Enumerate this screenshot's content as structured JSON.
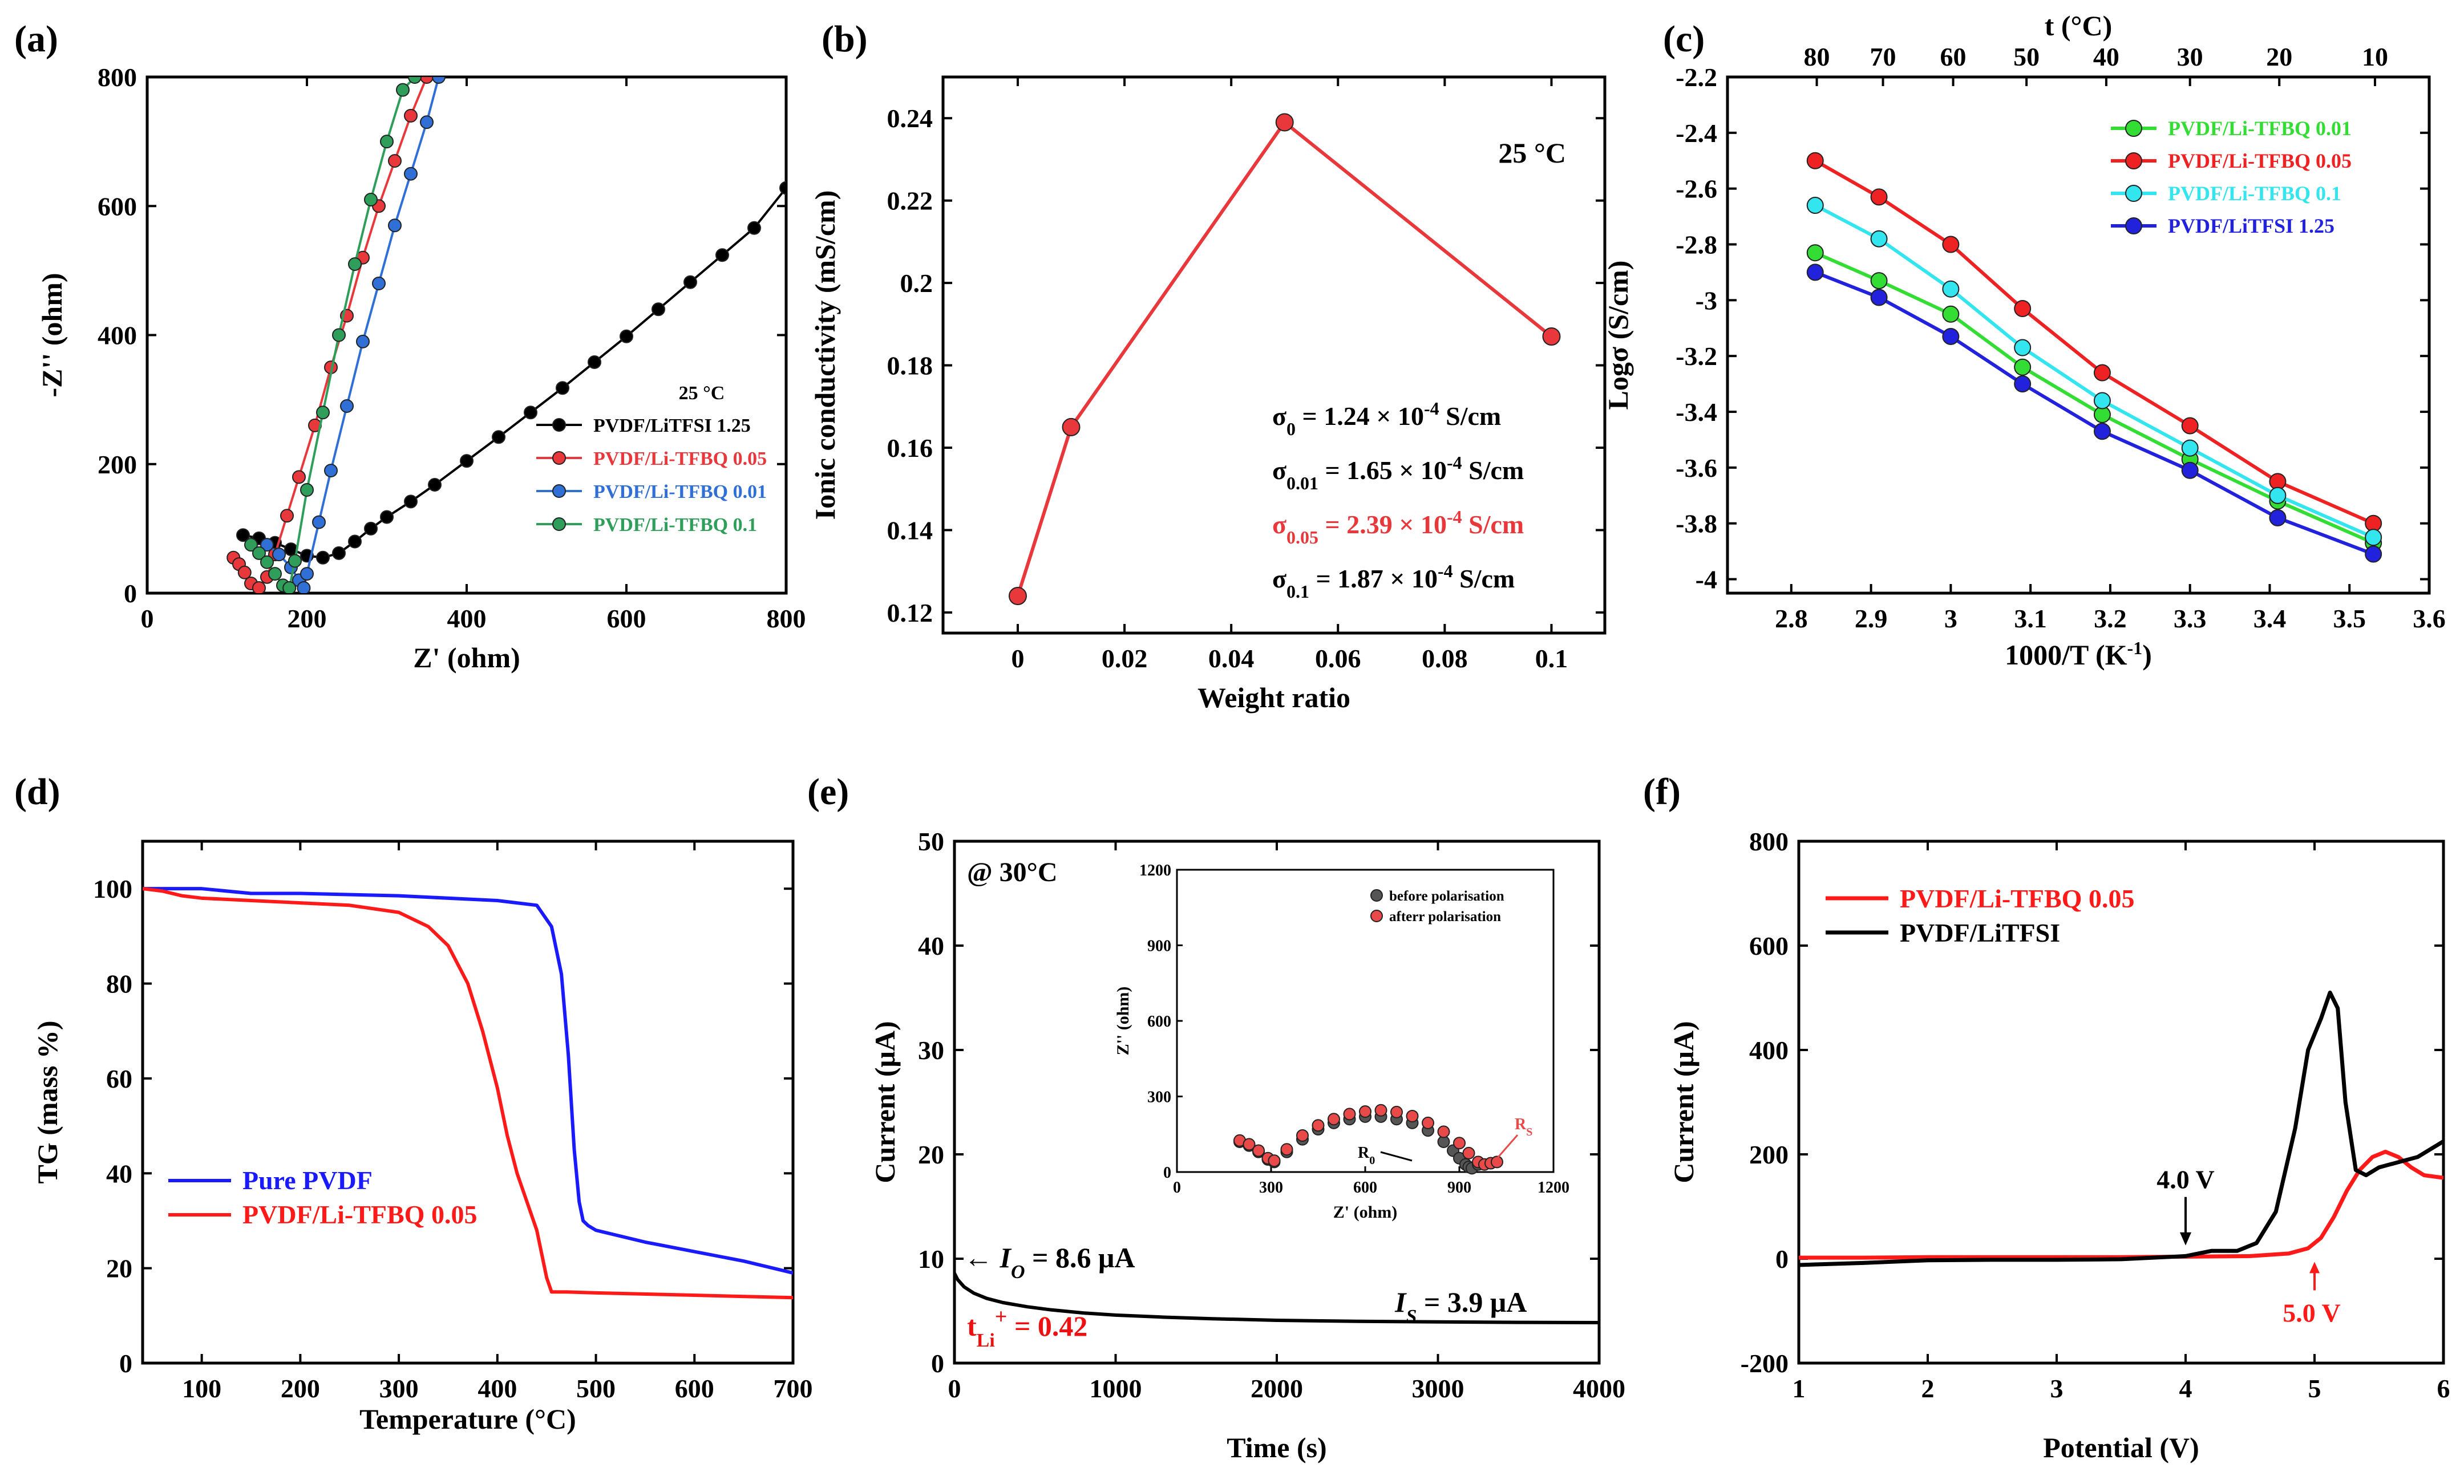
{
  "chart_data": [
    {
      "id": "a",
      "panel_label": "(a)",
      "type": "scatter",
      "xlabel": "Z' (ohm)",
      "ylabel": "-Z'' (ohm)",
      "xlim": [
        0,
        800
      ],
      "ylim": [
        0,
        800
      ],
      "xticks": [
        "0",
        "200",
        "400",
        "600",
        "800"
      ],
      "yticks": [
        "0",
        "200",
        "400",
        "600",
        "800"
      ],
      "legend_title": "25 °C",
      "series": [
        {
          "name": "PVDF/LiTFSI 1.25",
          "color": "#000000",
          "x": [
            120,
            140,
            160,
            180,
            200,
            220,
            240,
            260,
            280,
            300,
            330,
            360,
            400,
            440,
            480,
            520,
            560,
            600,
            640,
            680,
            720,
            760,
            800
          ],
          "y": [
            90,
            85,
            78,
            68,
            58,
            55,
            62,
            80,
            100,
            118,
            142,
            168,
            205,
            242,
            280,
            318,
            358,
            398,
            440,
            482,
            524,
            566,
            628
          ]
        },
        {
          "name": "PVDF/Li-TFBQ 0.05",
          "color": "#e8383c",
          "x": [
            108,
            115,
            122,
            130,
            140,
            150,
            160,
            175,
            190,
            210,
            230,
            250,
            270,
            290,
            310,
            330,
            350
          ],
          "y": [
            55,
            45,
            32,
            15,
            8,
            25,
            60,
            120,
            180,
            260,
            350,
            430,
            520,
            600,
            670,
            740,
            800
          ]
        },
        {
          "name": "PVDF/Li-TFBQ 0.01",
          "color": "#2f6fd6",
          "x": [
            150,
            165,
            180,
            190,
            196,
            200,
            215,
            230,
            250,
            270,
            290,
            310,
            330,
            350,
            365
          ],
          "y": [
            75,
            60,
            40,
            20,
            8,
            30,
            110,
            190,
            290,
            390,
            480,
            570,
            650,
            730,
            800
          ]
        },
        {
          "name": "PVDF/Li-TFBQ 0.1",
          "color": "#2e9e5a",
          "x": [
            130,
            140,
            150,
            160,
            170,
            178,
            185,
            200,
            220,
            240,
            260,
            280,
            300,
            320,
            335
          ],
          "y": [
            75,
            62,
            48,
            30,
            12,
            8,
            50,
            160,
            280,
            400,
            510,
            610,
            700,
            780,
            800
          ]
        }
      ]
    },
    {
      "id": "b",
      "panel_label": "(b)",
      "type": "line",
      "xlabel": "Weight ratio",
      "ylabel": "Ionic conductivity (mS/cm)",
      "xlim": [
        -0.014,
        0.11
      ],
      "ylim": [
        0.115,
        0.25
      ],
      "xticks": [
        "0",
        "0.02",
        "0.04",
        "0.06",
        "0.08",
        "0.1"
      ],
      "yticks": [
        "0.12",
        "0.14",
        "0.16",
        "0.18",
        "0.2",
        "0.22",
        "0.24"
      ],
      "temperature_label": "25 °C",
      "series": [
        {
          "name": "Ionic conductivity",
          "color": "#e8383c",
          "x": [
            0,
            0.01,
            0.05,
            0.1
          ],
          "y": [
            0.124,
            0.165,
            0.239,
            0.187
          ]
        }
      ],
      "annotations": [
        {
          "sym": "σ",
          "sub": "0",
          "text": " = 1.24 × 10",
          "exp": "-4",
          "unit": " S/cm",
          "color": "#000000"
        },
        {
          "sym": "σ",
          "sub": "0.01",
          "text": " = 1.65 × 10",
          "exp": "-4",
          "unit": " S/cm",
          "color": "#000000"
        },
        {
          "sym": "σ",
          "sub": "0.05",
          "text": " = 2.39 × 10",
          "exp": "-4",
          "unit": " S/cm",
          "color": "#e8383c"
        },
        {
          "sym": "σ",
          "sub": "0.1",
          "text": " = 1.87 × 10",
          "exp": "-4",
          "unit": " S/cm",
          "color": "#000000"
        }
      ]
    },
    {
      "id": "c",
      "panel_label": "(c)",
      "type": "line",
      "xlabel": "1000/T (K",
      "xlabel_sup": "-1",
      "xlabel_end": ")",
      "ylabel": "Logσ (S/cm)",
      "top_xlabel": "t (°C)",
      "xlim": [
        2.72,
        3.6
      ],
      "ylim": [
        -4.05,
        -2.2
      ],
      "xticks": [
        "2.8",
        "2.9",
        "3",
        "3.1",
        "3.2",
        "3.3",
        "3.4",
        "3.5",
        "3.6"
      ],
      "yticks": [
        "-2.2",
        "-2.4",
        "-2.6",
        "-2.8",
        "-3",
        "-3.2",
        "-3.4",
        "-3.6",
        "-3.8",
        "-4"
      ],
      "top_ticks": [
        {
          "label": "80",
          "x": 2.832
        },
        {
          "label": "70",
          "x": 2.915
        },
        {
          "label": "60",
          "x": 3.003
        },
        {
          "label": "50",
          "x": 3.095
        },
        {
          "label": "40",
          "x": 3.195
        },
        {
          "label": "30",
          "x": 3.3
        },
        {
          "label": "20",
          "x": 3.412
        },
        {
          "label": "10",
          "x": 3.532
        }
      ],
      "categories": [
        2.83,
        2.91,
        3.0,
        3.09,
        3.19,
        3.3,
        3.41,
        3.53
      ],
      "series": [
        {
          "name": "PVDF/Li-TFBQ 0.01",
          "color": "#33dd33",
          "values": [
            -2.83,
            -2.93,
            -3.05,
            -3.24,
            -3.41,
            -3.57,
            -3.72,
            -3.87
          ]
        },
        {
          "name": "PVDF/Li-TFBQ 0.05",
          "color": "#ee2222",
          "values": [
            -2.5,
            -2.63,
            -2.8,
            -3.03,
            -3.26,
            -3.45,
            -3.65,
            -3.8
          ]
        },
        {
          "name": "PVDF/Li-TFBQ 0.1",
          "color": "#33e5ee",
          "values": [
            -2.66,
            -2.78,
            -2.96,
            -3.17,
            -3.36,
            -3.53,
            -3.7,
            -3.85
          ]
        },
        {
          "name": "PVDF/LiTFSI 1.25",
          "color": "#2222dd",
          "values": [
            -2.9,
            -2.99,
            -3.13,
            -3.3,
            -3.47,
            -3.61,
            -3.78,
            -3.91
          ]
        }
      ]
    },
    {
      "id": "d",
      "panel_label": "(d)",
      "type": "line",
      "xlabel": "Temperature (°C)",
      "ylabel": "TG (mass %)",
      "xlim": [
        40,
        700
      ],
      "ylim": [
        0,
        110
      ],
      "xticks": [
        "100",
        "200",
        "300",
        "400",
        "500",
        "600",
        "700"
      ],
      "yticks": [
        "0",
        "20",
        "40",
        "60",
        "80",
        "100"
      ],
      "series": [
        {
          "name": "Pure PVDF",
          "color": "#1a1aff",
          "x": [
            40,
            100,
            150,
            200,
            300,
            400,
            440,
            455,
            465,
            472,
            478,
            483,
            487,
            492,
            500,
            550,
            600,
            650,
            700
          ],
          "y": [
            100,
            100,
            99,
            99,
            98.5,
            97.5,
            96.5,
            92,
            82,
            65,
            45,
            34,
            30,
            29,
            28,
            25.5,
            23.5,
            21.5,
            19
          ]
        },
        {
          "name": "PVDF/Li-TFBQ 0.05",
          "color": "#ff1a1a",
          "x": [
            40,
            60,
            80,
            100,
            150,
            200,
            250,
            300,
            330,
            350,
            370,
            385,
            400,
            410,
            420,
            430,
            440,
            450,
            455,
            470,
            500,
            600,
            700
          ],
          "y": [
            100,
            99.5,
            98.5,
            98,
            97.5,
            97,
            96.5,
            95,
            92,
            88,
            80,
            70,
            58,
            48,
            40,
            34,
            28,
            18,
            15,
            15,
            14.8,
            14.3,
            13.8
          ]
        }
      ]
    },
    {
      "id": "e",
      "panel_label": "(e)",
      "type": "line",
      "xlabel": "Time (s)",
      "ylabel": "Current (μA)",
      "xlim": [
        0,
        4000
      ],
      "ylim": [
        0,
        50
      ],
      "xticks": [
        "0",
        "1000",
        "2000",
        "3000",
        "4000"
      ],
      "yticks": [
        "0",
        "10",
        "20",
        "30",
        "40",
        "50"
      ],
      "condition_label": "@ 30°C",
      "io_label": "← I",
      "io_sub": "O",
      "io_value": " = 8.6 μA",
      "is_label": "I",
      "is_sub": "S",
      "is_value": " = 3.9 μA",
      "tli_label": "t",
      "tli_sub": "Li",
      "tli_sup": "+",
      "tli_value": " = 0.42",
      "series": [
        {
          "name": "Current",
          "color": "#000000",
          "x": [
            0,
            20,
            60,
            120,
            200,
            300,
            450,
            600,
            800,
            1000,
            1300,
            1600,
            2000,
            2500,
            3000,
            3500,
            4000
          ],
          "y": [
            8.6,
            8.0,
            7.3,
            6.7,
            6.2,
            5.8,
            5.4,
            5.1,
            4.8,
            4.6,
            4.4,
            4.25,
            4.1,
            4.0,
            3.95,
            3.9,
            3.88
          ]
        }
      ],
      "inset": {
        "xlabel": "Z' (ohm)",
        "ylabel": "Z'' (ohm)",
        "xlim": [
          0,
          1200
        ],
        "ylim": [
          0,
          1200
        ],
        "xticks": [
          "0",
          "300",
          "600",
          "900",
          "1200"
        ],
        "yticks": [
          "0",
          "300",
          "600",
          "900",
          "1200"
        ],
        "r0_label": "R",
        "r0_sub": "0",
        "rs_label": "R",
        "rs_sub": "S",
        "series": [
          {
            "name": "before polarisation",
            "color": "#555555",
            "x": [
              200,
              230,
              260,
              290,
              310,
              350,
              400,
              450,
              500,
              550,
              600,
              650,
              700,
              750,
              800,
              850,
              880,
              900,
              920,
              930,
              940,
              960
            ],
            "y": [
              120,
              105,
              80,
              50,
              40,
              80,
              130,
              170,
              195,
              210,
              220,
              220,
              210,
              195,
              165,
              120,
              85,
              55,
              30,
              20,
              15,
              30
            ]
          },
          {
            "name": "afterr polarisation",
            "color": "#e84a4a",
            "x": [
              200,
              230,
              260,
              290,
              310,
              350,
              400,
              450,
              500,
              550,
              600,
              650,
              700,
              750,
              800,
              850,
              900,
              930,
              960,
              980,
              1000,
              1020
            ],
            "y": [
              125,
              110,
              85,
              55,
              45,
              90,
              145,
              185,
              210,
              230,
              240,
              245,
              238,
              222,
              195,
              160,
              115,
              75,
              40,
              30,
              35,
              40
            ]
          }
        ]
      }
    },
    {
      "id": "f",
      "panel_label": "(f)",
      "type": "line",
      "xlabel": "Potential (V)",
      "ylabel": "Current (μA)",
      "xlim": [
        1,
        6
      ],
      "ylim": [
        -200,
        800
      ],
      "xticks": [
        "1",
        "2",
        "3",
        "4",
        "5",
        "6"
      ],
      "yticks": [
        "-200",
        "0",
        "200",
        "400",
        "600",
        "800"
      ],
      "marker_black": "4.0 V",
      "marker_red": "5.0 V",
      "series": [
        {
          "name": "PVDF/Li-TFBQ 0.05",
          "color": "#ff1a1a",
          "x": [
            1,
            1.5,
            2,
            2.5,
            3,
            3.5,
            4,
            4.5,
            4.8,
            4.95,
            5.05,
            5.15,
            5.25,
            5.35,
            5.45,
            5.55,
            5.65,
            5.75,
            5.85,
            6
          ],
          "y": [
            2,
            2,
            3,
            3,
            3,
            3,
            4,
            5,
            10,
            20,
            40,
            80,
            130,
            170,
            195,
            205,
            195,
            175,
            160,
            155
          ]
        },
        {
          "name": "PVDF/LiTFSI",
          "color": "#000000",
          "x": [
            1,
            1.5,
            2,
            2.5,
            3,
            3.5,
            4,
            4.1,
            4.2,
            4.4,
            4.55,
            4.7,
            4.85,
            4.95,
            5.05,
            5.12,
            5.18,
            5.24,
            5.32,
            5.4,
            5.5,
            5.65,
            5.8,
            5.9,
            6
          ],
          "y": [
            -12,
            -8,
            -3,
            -2,
            -2,
            -1,
            5,
            10,
            15,
            15,
            30,
            90,
            250,
            400,
            460,
            510,
            480,
            300,
            170,
            160,
            175,
            185,
            195,
            210,
            225
          ]
        }
      ]
    }
  ]
}
